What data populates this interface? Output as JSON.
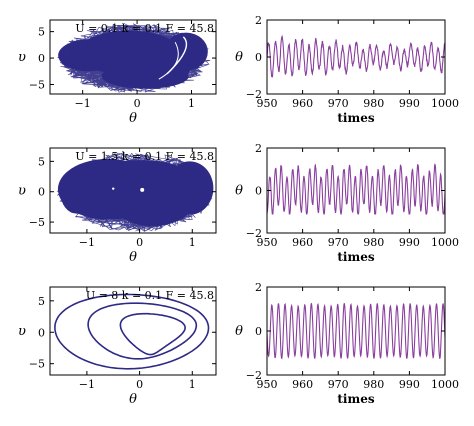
{
  "chart_data": [
    {
      "type": "scatter",
      "id": "phase1",
      "annotation": "U = 0.1  k = 0.1  F = 45.8",
      "xlabel": "θ",
      "ylabel": "υ",
      "xlim": [
        -1.6,
        1.45
      ],
      "ylim": [
        -6.8,
        7.2
      ],
      "xticks": [
        -1,
        0,
        1
      ],
      "xtick_labels": [
        "−1",
        "0",
        "1"
      ],
      "yticks": [
        -5,
        0,
        5
      ],
      "ytick_labels": [
        "−5",
        "0",
        "5"
      ],
      "color": "#2e2a85",
      "x_extent": [
        -1.4,
        1.3
      ],
      "y_extent": [
        -6.2,
        6.4
      ]
    },
    {
      "type": "line",
      "id": "time1",
      "xlabel": "times",
      "ylabel": "θ",
      "xlim": [
        950,
        1000
      ],
      "ylim": [
        -2,
        2
      ],
      "xticks": [
        950,
        960,
        970,
        980,
        990,
        1000
      ],
      "xtick_labels": [
        "950",
        "960",
        "970",
        "980",
        "990",
        "1000"
      ],
      "yticks": [
        -2,
        0,
        2
      ],
      "ytick_labels": [
        "−2",
        "0",
        "2"
      ],
      "color": "#8a3f9e",
      "amplitude_range": [
        -1.1,
        1.2
      ]
    },
    {
      "type": "scatter",
      "id": "phase2",
      "annotation": "U = 1.5  k = 0.1  F = 45.8",
      "xlabel": "θ",
      "ylabel": "υ",
      "xlim": [
        -1.7,
        1.45
      ],
      "ylim": [
        -6.8,
        7.2
      ],
      "xticks": [
        -1,
        0,
        1
      ],
      "xtick_labels": [
        "−1",
        "0",
        "1"
      ],
      "yticks": [
        -5,
        0,
        5
      ],
      "ytick_labels": [
        "−5",
        "0",
        "5"
      ],
      "color": "#2e2a85",
      "x_extent": [
        -1.5,
        1.35
      ],
      "y_extent": [
        -6.3,
        6.3
      ]
    },
    {
      "type": "line",
      "id": "time2",
      "xlabel": "times",
      "ylabel": "θ",
      "xlim": [
        950,
        1000
      ],
      "ylim": [
        -2,
        2
      ],
      "xticks": [
        950,
        960,
        970,
        980,
        990,
        1000
      ],
      "xtick_labels": [
        "950",
        "960",
        "970",
        "980",
        "990",
        "1000"
      ],
      "yticks": [
        -2,
        0,
        2
      ],
      "ytick_labels": [
        "−2",
        "0",
        "2"
      ],
      "color": "#8a3f9e",
      "amplitude_range": [
        -1.1,
        1.3
      ]
    },
    {
      "type": "line",
      "id": "phase3",
      "annotation": "U = 8  k = 0.1  F = 45.8",
      "xlabel": "θ",
      "ylabel": "υ",
      "xlim": [
        -1.7,
        1.45
      ],
      "ylim": [
        -6.8,
        7.2
      ],
      "xticks": [
        -1,
        0,
        1
      ],
      "xtick_labels": [
        "−1",
        "0",
        "1"
      ],
      "yticks": [
        -5,
        0,
        5
      ],
      "ytick_labels": [
        "−5",
        "0",
        "5"
      ],
      "color": "#2e2a85",
      "orbit_x_extent": [
        -1.6,
        1.3
      ],
      "orbit_y_extent": [
        -6.1,
        6.0
      ]
    },
    {
      "type": "line",
      "id": "time3",
      "xlabel": "times",
      "ylabel": "θ",
      "xlim": [
        950,
        1000
      ],
      "ylim": [
        -2,
        2
      ],
      "xticks": [
        950,
        960,
        970,
        980,
        990,
        1000
      ],
      "xtick_labels": [
        "950",
        "960",
        "970",
        "980",
        "990",
        "1000"
      ],
      "yticks": [
        -2,
        0,
        2
      ],
      "ytick_labels": [
        "−2",
        "0",
        "2"
      ],
      "color": "#8a3f9e",
      "amplitude_range": [
        -1.3,
        1.3
      ]
    }
  ]
}
